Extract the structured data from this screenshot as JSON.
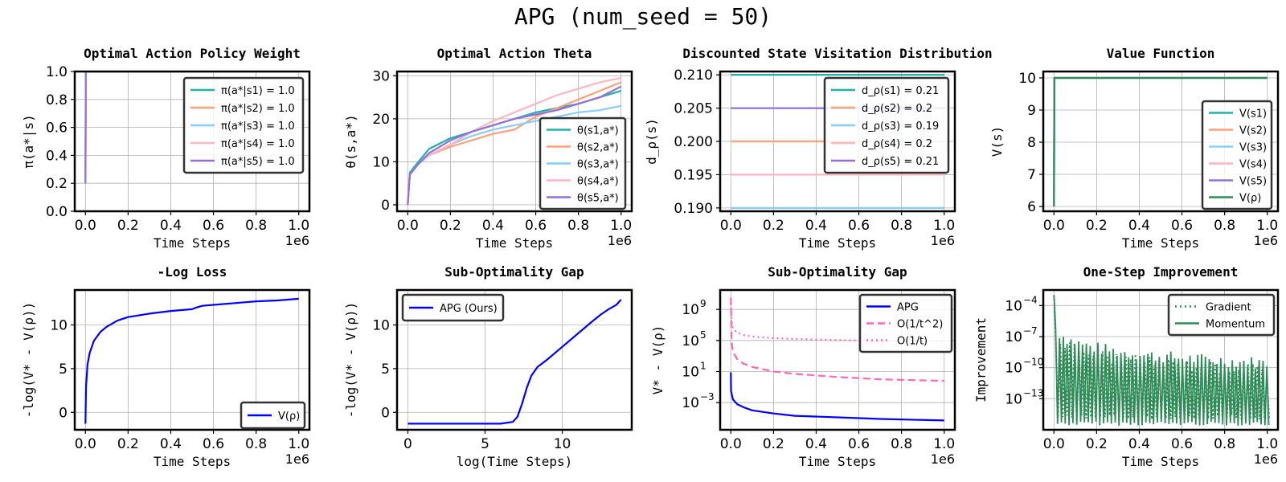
{
  "figure": {
    "suptitle": "APG (num_seed = 50)"
  },
  "colors": {
    "s1": "#20b2aa",
    "s2": "#ffa07a",
    "s3": "#87cefa",
    "s4": "#ffb6c1",
    "s5": "#9370db",
    "vrho": "#2e8b57",
    "apg": "#0000ff",
    "ref": "#ff69b4",
    "grid": "#b0b0b0"
  },
  "chart_data": [
    {
      "type": "line",
      "title": "Optimal Action Policy Weight",
      "xlabel": "Time Steps",
      "ylabel": "π(a*|s)",
      "xlim": [
        -0.05,
        1.05
      ],
      "ylim": [
        0.0,
        1.0
      ],
      "xticks": [
        0.0,
        0.2,
        0.4,
        0.6,
        0.8,
        1.0
      ],
      "xtick_labels": [
        "0.0",
        "0.2",
        "0.4",
        "0.6",
        "0.8",
        "1.0"
      ],
      "yticks": [
        0.0,
        0.2,
        0.4,
        0.6,
        0.8,
        1.0
      ],
      "ytick_labels": [
        "0.0",
        "0.2",
        "0.4",
        "0.6",
        "0.8",
        "1.0"
      ],
      "x_offset_label": "1e6",
      "grid": true,
      "legend_position": "top-right",
      "series": [
        {
          "name": "π(a*|s1) = 1.0",
          "color": "#20b2aa",
          "x": [
            0,
            0.002,
            1.0
          ],
          "y": [
            0.2,
            1.0,
            1.0
          ]
        },
        {
          "name": "π(a*|s2) = 1.0",
          "color": "#ffa07a",
          "x": [
            0,
            0.002,
            1.0
          ],
          "y": [
            0.2,
            1.0,
            1.0
          ]
        },
        {
          "name": "π(a*|s3) = 1.0",
          "color": "#87cefa",
          "x": [
            0,
            0.002,
            1.0
          ],
          "y": [
            0.2,
            1.0,
            1.0
          ]
        },
        {
          "name": "π(a*|s4) = 1.0",
          "color": "#ffb6c1",
          "x": [
            0,
            0.002,
            1.0
          ],
          "y": [
            0.2,
            1.0,
            1.0
          ]
        },
        {
          "name": "π(a*|s5) = 1.0",
          "color": "#9370db",
          "x": [
            0,
            0.002,
            1.0
          ],
          "y": [
            0.2,
            1.0,
            1.0
          ]
        }
      ]
    },
    {
      "type": "line",
      "title": "Optimal Action Theta",
      "xlabel": "Time Steps",
      "ylabel": "θ(s,a*)",
      "xlim": [
        -0.05,
        1.05
      ],
      "ylim": [
        -1.5,
        31
      ],
      "xticks": [
        0.0,
        0.2,
        0.4,
        0.6,
        0.8,
        1.0
      ],
      "xtick_labels": [
        "0.0",
        "0.2",
        "0.4",
        "0.6",
        "0.8",
        "1.0"
      ],
      "yticks": [
        0,
        10,
        20,
        30
      ],
      "ytick_labels": [
        "0",
        "10",
        "20",
        "30"
      ],
      "x_offset_label": "1e6",
      "grid": true,
      "legend_position": "bottom-right",
      "series": [
        {
          "name": "θ(s1,a*)",
          "color": "#20b2aa",
          "x": [
            0,
            0.01,
            0.05,
            0.1,
            0.2,
            0.3,
            0.4,
            0.5,
            0.6,
            0.7,
            0.8,
            0.9,
            1.0
          ],
          "y": [
            0,
            7.5,
            10,
            13,
            15.5,
            17,
            18.5,
            20,
            21.5,
            22.5,
            23.5,
            25,
            26.5
          ]
        },
        {
          "name": "θ(s2,a*)",
          "color": "#ffa07a",
          "x": [
            0,
            0.01,
            0.05,
            0.1,
            0.2,
            0.3,
            0.4,
            0.5,
            0.6,
            0.7,
            0.8,
            0.9,
            1.0
          ],
          "y": [
            0,
            7,
            9.5,
            11.5,
            13.5,
            15,
            16.5,
            17.5,
            20.5,
            22.5,
            24.5,
            26.5,
            28.5
          ]
        },
        {
          "name": "θ(s3,a*)",
          "color": "#87cefa",
          "x": [
            0,
            0.01,
            0.05,
            0.1,
            0.2,
            0.3,
            0.4,
            0.5,
            0.6,
            0.7,
            0.8,
            0.9,
            1.0
          ],
          "y": [
            0,
            7,
            9.5,
            11.5,
            14,
            16,
            17.5,
            18.5,
            19.5,
            20.5,
            21.5,
            22,
            23
          ]
        },
        {
          "name": "θ(s4,a*)",
          "color": "#ffb6c1",
          "x": [
            0,
            0.01,
            0.05,
            0.1,
            0.2,
            0.3,
            0.4,
            0.5,
            0.6,
            0.7,
            0.8,
            0.9,
            1.0
          ],
          "y": [
            0,
            7,
            9.5,
            11.5,
            14,
            17,
            19.5,
            21.5,
            23.5,
            25.5,
            27,
            28.5,
            29.5
          ]
        },
        {
          "name": "θ(s5,a*)",
          "color": "#9370db",
          "x": [
            0,
            0.01,
            0.05,
            0.1,
            0.2,
            0.3,
            0.4,
            0.5,
            0.6,
            0.7,
            0.8,
            0.9,
            1.0
          ],
          "y": [
            0,
            7,
            9.5,
            12,
            15,
            17,
            18.5,
            20,
            21,
            22,
            23.5,
            25,
            27.5
          ]
        }
      ]
    },
    {
      "type": "line",
      "title": "Discounted State Visitation Distribution",
      "xlabel": "Time Steps",
      "ylabel": "d_ρ(s)",
      "xlim": [
        -0.05,
        1.05
      ],
      "ylim": [
        0.1895,
        0.2105
      ],
      "xticks": [
        0.0,
        0.2,
        0.4,
        0.6,
        0.8,
        1.0
      ],
      "xtick_labels": [
        "0.0",
        "0.2",
        "0.4",
        "0.6",
        "0.8",
        "1.0"
      ],
      "yticks": [
        0.19,
        0.195,
        0.2,
        0.205,
        0.21
      ],
      "ytick_labels": [
        "0.190",
        "0.195",
        "0.200",
        "0.205",
        "0.210"
      ],
      "x_offset_label": "1e6",
      "grid": true,
      "legend_position": "top-right",
      "series": [
        {
          "name": "d_ρ(s1) = 0.21",
          "color": "#20b2aa",
          "x": [
            0,
            1.0
          ],
          "y": [
            0.21,
            0.21
          ]
        },
        {
          "name": "d_ρ(s2) = 0.2",
          "color": "#ffa07a",
          "x": [
            0,
            1.0
          ],
          "y": [
            0.2,
            0.2
          ]
        },
        {
          "name": "d_ρ(s3) = 0.19",
          "color": "#87cefa",
          "x": [
            0,
            1.0
          ],
          "y": [
            0.19,
            0.19
          ]
        },
        {
          "name": "d_ρ(s4) = 0.2",
          "color": "#ffb6c1",
          "x": [
            0,
            1.0
          ],
          "y": [
            0.195,
            0.195
          ]
        },
        {
          "name": "d_ρ(s5) = 0.21",
          "color": "#9370db",
          "x": [
            0,
            1.0
          ],
          "y": [
            0.205,
            0.205
          ]
        }
      ]
    },
    {
      "type": "line",
      "title": "Value Function",
      "xlabel": "Time Steps",
      "ylabel": "V(s)",
      "xlim": [
        -0.05,
        1.05
      ],
      "ylim": [
        5.85,
        10.2
      ],
      "xticks": [
        0.0,
        0.2,
        0.4,
        0.6,
        0.8,
        1.0
      ],
      "xtick_labels": [
        "0.0",
        "0.2",
        "0.4",
        "0.6",
        "0.8",
        "1.0"
      ],
      "yticks": [
        6,
        7,
        8,
        9,
        10
      ],
      "ytick_labels": [
        "6",
        "7",
        "8",
        "9",
        "10"
      ],
      "x_offset_label": "1e6",
      "grid": true,
      "legend_position": "bottom-right",
      "series": [
        {
          "name": "V(s1)",
          "color": "#20b2aa",
          "x": [
            0,
            0.002,
            1.0
          ],
          "y": [
            6.0,
            10.0,
            10.0
          ]
        },
        {
          "name": "V(s2)",
          "color": "#ffa07a",
          "x": [
            0,
            0.002,
            1.0
          ],
          "y": [
            6.0,
            10.0,
            10.0
          ]
        },
        {
          "name": "V(s3)",
          "color": "#87cefa",
          "x": [
            0,
            0.002,
            1.0
          ],
          "y": [
            6.0,
            10.0,
            10.0
          ]
        },
        {
          "name": "V(s4)",
          "color": "#ffb6c1",
          "x": [
            0,
            0.002,
            1.0
          ],
          "y": [
            6.0,
            10.0,
            10.0
          ]
        },
        {
          "name": "V(s5)",
          "color": "#9370db",
          "x": [
            0,
            0.002,
            1.0
          ],
          "y": [
            6.0,
            10.0,
            10.0
          ]
        },
        {
          "name": "V(ρ)",
          "color": "#2e8b57",
          "x": [
            0,
            0.002,
            1.0
          ],
          "y": [
            6.0,
            10.0,
            10.0
          ]
        }
      ]
    },
    {
      "type": "line",
      "title": "-Log Loss",
      "xlabel": "Time Steps",
      "ylabel": "-log(V* - V(ρ))",
      "xlim": [
        -0.05,
        1.05
      ],
      "ylim": [
        -2,
        14
      ],
      "xticks": [
        0.0,
        0.2,
        0.4,
        0.6,
        0.8,
        1.0
      ],
      "xtick_labels": [
        "0.0",
        "0.2",
        "0.4",
        "0.6",
        "0.8",
        "1.0"
      ],
      "yticks": [
        0,
        5,
        10
      ],
      "ytick_labels": [
        "0",
        "5",
        "10"
      ],
      "x_offset_label": "1e6",
      "grid": true,
      "legend_position": "bottom-right",
      "series": [
        {
          "name": "V(ρ)",
          "color": "#0000ff",
          "x": [
            0,
            0.003,
            0.01,
            0.02,
            0.04,
            0.07,
            0.1,
            0.15,
            0.2,
            0.3,
            0.4,
            0.5,
            0.52,
            0.55,
            0.6,
            0.7,
            0.8,
            0.9,
            1.0
          ],
          "y": [
            -1.3,
            3,
            5.5,
            6.8,
            8.2,
            9.2,
            9.8,
            10.5,
            10.9,
            11.3,
            11.6,
            11.8,
            12.0,
            12.2,
            12.3,
            12.5,
            12.7,
            12.8,
            13.0
          ]
        }
      ]
    },
    {
      "type": "line",
      "title": "Sub-Optimality Gap",
      "xlabel": "log(Time Steps)",
      "ylabel": "-log(V* - V(ρ))",
      "xlim": [
        -0.7,
        14.5
      ],
      "ylim": [
        -2,
        14
      ],
      "xticks": [
        0,
        5,
        10
      ],
      "xtick_labels": [
        "0",
        "5",
        "10"
      ],
      "yticks": [
        0,
        5,
        10
      ],
      "ytick_labels": [
        "0",
        "5",
        "10"
      ],
      "x_offset_label": "",
      "grid": true,
      "legend_position": "top-left",
      "series": [
        {
          "name": "APG (Ours)",
          "color": "#0000ff",
          "x": [
            0,
            3,
            6,
            6.8,
            7.1,
            7.4,
            7.7,
            8.0,
            8.4,
            9.0,
            10,
            11,
            12,
            12.5,
            13,
            13.5,
            13.8
          ],
          "y": [
            -1.3,
            -1.3,
            -1.3,
            -1.1,
            -0.5,
            1,
            2.8,
            4.2,
            5.2,
            6.0,
            7.5,
            9.0,
            10.5,
            11.2,
            11.8,
            12.3,
            12.9
          ]
        }
      ]
    },
    {
      "type": "line",
      "title": "Sub-Optimality Gap",
      "xlabel": "Time Steps",
      "ylabel": "V* - V(ρ)",
      "xlim": [
        -0.05,
        1.05
      ],
      "ylim": [
        -6.5,
        11.5
      ],
      "y_scale": "log",
      "xticks": [
        0.0,
        0.2,
        0.4,
        0.6,
        0.8,
        1.0
      ],
      "xtick_labels": [
        "0.0",
        "0.2",
        "0.4",
        "0.6",
        "0.8",
        "1.0"
      ],
      "yticks": [
        -3,
        1,
        5,
        9
      ],
      "ytick_labels": [
        "10",
        "10",
        "10",
        "10"
      ],
      "ytick_exponents": [
        "−3",
        "1",
        "5",
        "9"
      ],
      "x_offset_label": "1e6",
      "grid": true,
      "legend_position": "top-right",
      "series": [
        {
          "name": "APG",
          "color": "#0000ff",
          "style": "solid",
          "x": [
            0,
            0.001,
            0.01,
            0.03,
            0.06,
            0.1,
            0.2,
            0.3,
            0.5,
            0.7,
            1.0
          ],
          "y": [
            0.9,
            -1.5,
            -2.6,
            -3.2,
            -3.6,
            -4.0,
            -4.4,
            -4.7,
            -4.9,
            -5.1,
            -5.3
          ]
        },
        {
          "name": "O(1/t^2)",
          "color": "#ff69b4",
          "style": "dashed",
          "x": [
            0,
            0.003,
            0.01,
            0.03,
            0.06,
            0.1,
            0.2,
            0.3,
            0.5,
            0.7,
            1.0
          ],
          "y": [
            10.5,
            5,
            3.5,
            2.6,
            2.0,
            1.6,
            1.0,
            0.7,
            0.3,
            0.0,
            -0.2
          ]
        },
        {
          "name": "O(1/t)",
          "color": "#ff69b4",
          "style": "dotted",
          "x": [
            0,
            0.003,
            0.01,
            0.03,
            0.06,
            0.1,
            0.2,
            0.3,
            0.5,
            0.7,
            1.0
          ],
          "y": [
            10.5,
            7.5,
            6.5,
            6.0,
            5.7,
            5.5,
            5.3,
            5.2,
            5.05,
            4.95,
            4.85
          ]
        }
      ]
    },
    {
      "type": "line",
      "title": "One-Step Improvement",
      "xlabel": "Time Steps",
      "ylabel": "Improvement",
      "xlim": [
        -0.05,
        1.05
      ],
      "ylim": [
        -16,
        -2.5
      ],
      "y_scale": "log",
      "xticks": [
        0.0,
        0.2,
        0.4,
        0.6,
        0.8,
        1.0
      ],
      "xtick_labels": [
        "0.0",
        "0.2",
        "0.4",
        "0.6",
        "0.8",
        "1.0"
      ],
      "yticks": [
        -13,
        -10,
        -7,
        -4
      ],
      "ytick_labels": [
        "10",
        "10",
        "10",
        "10"
      ],
      "ytick_exponents": [
        "−13",
        "−10",
        "−7",
        "−4"
      ],
      "x_offset_label": "1e6",
      "grid": true,
      "legend_position": "top-right",
      "series": [
        {
          "name": "Gradient",
          "color": "#2e8b57",
          "style": "dotted"
        },
        {
          "name": "Momentum",
          "color": "#2e8b57",
          "style": "solid"
        }
      ]
    }
  ]
}
